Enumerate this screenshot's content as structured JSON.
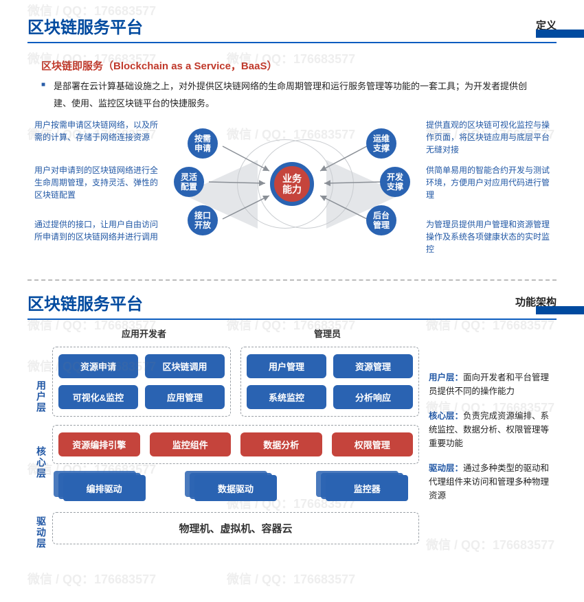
{
  "colors": {
    "primary_blue": "#2a63b2",
    "accent_red": "#c5443c",
    "link_blue": "#2258a5",
    "rule_blue": "#0b5cbf"
  },
  "watermark": "微信 / QQ：176683577",
  "section1": {
    "title": "区块链服务平台",
    "subtitle": "定义",
    "lead": "区块链即服务（Blockchain as a Service，BaaS）",
    "bullet": "是部署在云计算基础设施之上，对外提供区块链网络的生命周期管理和运行服务管理等功能的一套工具；为开发者提供创建、使用、监控区块链平台的快捷服务。",
    "bubble_center": "业务\n能力",
    "left_bubbles": [
      {
        "label": "按需\n申请"
      },
      {
        "label": "灵活\n配置"
      },
      {
        "label": "接口\n开放"
      }
    ],
    "right_bubbles": [
      {
        "label": "运维\n支撑"
      },
      {
        "label": "开发\n支撑"
      },
      {
        "label": "后台\n管理"
      }
    ],
    "left_texts": [
      "用户按需申请区块链网络，以及所需的计算、存储于网络连接资源",
      "用户对申请到的区块链网络进行全生命周期管理，支持灵活、弹性的区块链配置",
      "通过提供的接口，让用户自由访问所申请到的区块链网络并进行调用"
    ],
    "right_texts": [
      "提供直观的区块链可视化监控与操作页面，将区块链应用与底层平台无缝对接",
      "供简单易用的智能合约开发与测试环境，方便用户对应用代码进行管理",
      "为管理员提供用户管理和资源管理操作及系统各项健康状态的实时监控"
    ]
  },
  "section2": {
    "title": "区块链服务平台",
    "subtitle": "功能架构",
    "roles": [
      "应用开发者",
      "管理员"
    ],
    "layers": {
      "user": "用户层",
      "core": "核心层",
      "driver": "驱动层"
    },
    "user_dev": [
      "资源申请",
      "区块链调用",
      "可视化&监控",
      "应用管理"
    ],
    "user_admin": [
      "用户管理",
      "资源管理",
      "系统监控",
      "分析响应"
    ],
    "core": [
      "资源编排引擎",
      "监控组件",
      "数据分析",
      "权限管理"
    ],
    "drivers": [
      "编排驱动",
      "数据驱动",
      "监控器"
    ],
    "physical": "物理机、虚拟机、容器云",
    "side": {
      "user": {
        "label": "用户层：",
        "text": "面向开发者和平台管理员提供不同的操作能力"
      },
      "core": {
        "label": "核心层：",
        "text": "负责完成资源编排、系统监控、数据分析、权限管理等重要功能"
      },
      "driver": {
        "label": "驱动层：",
        "text": "通过多种类型的驱动和代理组件来访问和管理多种物理资源"
      }
    }
  }
}
